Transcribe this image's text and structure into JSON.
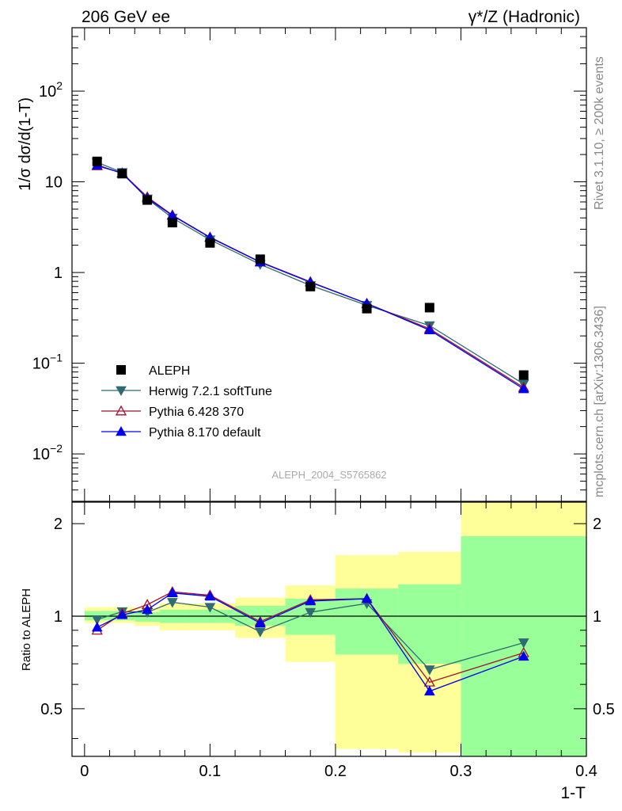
{
  "header": {
    "left_title": "206 GeV ee",
    "right_title": "γ*/Z (Hadronic)",
    "side_rivet": "Rivet 3.1.10, ≥ 200k events",
    "side_site": "mcplots.cern.ch [arXiv:1306.3436]",
    "analysis_label": "ALEPH_2004_S5765862"
  },
  "chart_data": [
    {
      "type": "line",
      "panel": "main",
      "ylabel": "1/σ  dσ/d(1-T)",
      "xlabel": "",
      "yscale": "log",
      "xlim": [
        -0.01,
        0.4
      ],
      "ylim": [
        0.003,
        500
      ],
      "y_ticks": [
        {
          "v": 0.01,
          "base": "10",
          "exp": "−2"
        },
        {
          "v": 0.1,
          "base": "10",
          "exp": "−1"
        },
        {
          "v": 1,
          "base": "1",
          "exp": ""
        },
        {
          "v": 10,
          "base": "10",
          "exp": ""
        },
        {
          "v": 100,
          "base": "10",
          "exp": "2"
        }
      ],
      "legend_position": "lower-left",
      "series": [
        {
          "name": "ALEPH",
          "marker": "square",
          "color": "#000000",
          "line": false,
          "x": [
            0.01,
            0.03,
            0.05,
            0.07,
            0.1,
            0.14,
            0.18,
            0.225,
            0.275,
            0.35
          ],
          "values": [
            16.8,
            12.3,
            6.3,
            3.55,
            2.12,
            1.4,
            0.7,
            0.4,
            0.41,
            0.074
          ]
        },
        {
          "name": "Herwig 7.2.1 softTune",
          "marker": "triangle-down",
          "color": "#2f6b72",
          "line": true,
          "x": [
            0.01,
            0.03,
            0.05,
            0.07,
            0.1,
            0.14,
            0.18,
            0.225,
            0.275,
            0.35
          ],
          "values": [
            16.4,
            12.7,
            6.5,
            4.0,
            2.3,
            1.23,
            0.72,
            0.435,
            0.26,
            0.059
          ]
        },
        {
          "name": "Pythia 6.428 370",
          "marker": "triangle-up-open",
          "color": "#a4102a",
          "line": true,
          "x": [
            0.01,
            0.03,
            0.05,
            0.07,
            0.1,
            0.14,
            0.18,
            0.225,
            0.275,
            0.35
          ],
          "values": [
            15.0,
            12.5,
            6.8,
            4.3,
            2.45,
            1.31,
            0.79,
            0.455,
            0.24,
            0.054
          ]
        },
        {
          "name": "Pythia 8.170 default",
          "marker": "triangle-up",
          "color": "#0000ee",
          "line": true,
          "x": [
            0.01,
            0.03,
            0.05,
            0.07,
            0.1,
            0.14,
            0.18,
            0.225,
            0.275,
            0.35
          ],
          "values": [
            15.3,
            12.4,
            6.6,
            4.25,
            2.43,
            1.3,
            0.78,
            0.455,
            0.232,
            0.052
          ]
        }
      ]
    },
    {
      "type": "line",
      "panel": "ratio",
      "ylabel": "Ratio to ALEPH",
      "xlabel": "1-T",
      "yscale": "log",
      "xlim": [
        -0.01,
        0.4
      ],
      "ylim": [
        0.35,
        2.35
      ],
      "y_ticks": [
        0.5,
        1,
        2
      ],
      "x_ticks": [
        0,
        0.1,
        0.2,
        0.3,
        0.4
      ],
      "reference": 1.0,
      "bands": [
        {
          "x0": 0.0,
          "x1": 0.02,
          "yellow": [
            0.95,
            1.07
          ],
          "green": [
            0.97,
            1.04
          ]
        },
        {
          "x0": 0.02,
          "x1": 0.04,
          "yellow": [
            0.95,
            1.07
          ],
          "green": [
            0.97,
            1.04
          ]
        },
        {
          "x0": 0.04,
          "x1": 0.06,
          "yellow": [
            0.93,
            1.06
          ],
          "green": [
            0.96,
            1.03
          ]
        },
        {
          "x0": 0.06,
          "x1": 0.08,
          "yellow": [
            0.9,
            1.1
          ],
          "green": [
            0.95,
            1.05
          ]
        },
        {
          "x0": 0.08,
          "x1": 0.12,
          "yellow": [
            0.9,
            1.1
          ],
          "green": [
            0.95,
            1.05
          ]
        },
        {
          "x0": 0.12,
          "x1": 0.16,
          "yellow": [
            0.85,
            1.15
          ],
          "green": [
            0.93,
            1.08
          ]
        },
        {
          "x0": 0.16,
          "x1": 0.2,
          "yellow": [
            0.71,
            1.26
          ],
          "green": [
            0.87,
            1.14
          ]
        },
        {
          "x0": 0.2,
          "x1": 0.25,
          "yellow": [
            0.37,
            1.58
          ],
          "green": [
            0.75,
            1.23
          ]
        },
        {
          "x0": 0.25,
          "x1": 0.3,
          "yellow": [
            0.36,
            1.62
          ],
          "green": [
            0.7,
            1.27
          ]
        },
        {
          "x0": 0.3,
          "x1": 0.4,
          "yellow": [
            0.35,
            2.35
          ],
          "green": [
            0.35,
            1.82
          ]
        }
      ],
      "series": [
        {
          "name": "Herwig 7.2.1 softTune",
          "marker": "triangle-down",
          "color": "#2f6b72",
          "x": [
            0.01,
            0.03,
            0.05,
            0.07,
            0.1,
            0.14,
            0.18,
            0.225,
            0.275,
            0.35
          ],
          "values": [
            0.975,
            1.035,
            1.03,
            1.11,
            1.07,
            0.89,
            1.03,
            1.1,
            0.67,
            0.82
          ]
        },
        {
          "name": "Pythia 6.428 370",
          "marker": "triangle-up-open",
          "color": "#a4102a",
          "x": [
            0.01,
            0.03,
            0.05,
            0.07,
            0.1,
            0.14,
            0.18,
            0.225,
            0.275,
            0.35
          ],
          "values": [
            0.9,
            1.02,
            1.09,
            1.2,
            1.17,
            0.96,
            1.13,
            1.14,
            0.61,
            0.76
          ]
        },
        {
          "name": "Pythia 8.170 default",
          "marker": "triangle-up",
          "color": "#0000ee",
          "x": [
            0.01,
            0.03,
            0.05,
            0.07,
            0.1,
            0.14,
            0.18,
            0.225,
            0.275,
            0.35
          ],
          "values": [
            0.92,
            1.01,
            1.05,
            1.19,
            1.16,
            0.95,
            1.12,
            1.14,
            0.57,
            0.74
          ]
        }
      ]
    }
  ]
}
